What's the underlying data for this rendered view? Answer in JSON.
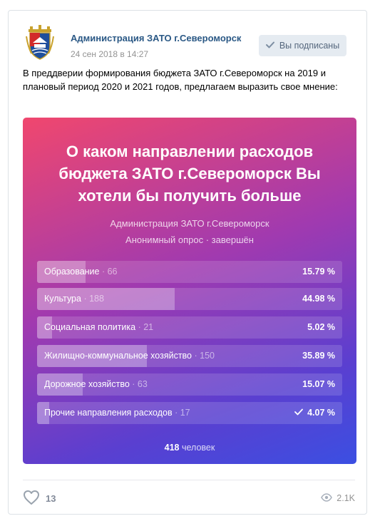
{
  "post": {
    "author": "Администрация ЗАТО г.Североморск",
    "date": "24 сен 2018 в 14:27",
    "subscribe_label": "Вы подписаны",
    "text": "В преддверии формирования бюджета ЗАТО г.Североморск на 2019 и плановый период 2020 и 2021 годов, предлагаем выразить свое мнение:"
  },
  "poll": {
    "title": "О каком направлении расходов бюджета ЗАТО г.Североморск Вы хотели бы получить больше",
    "author": "Администрация ЗАТО г.Североморск",
    "status": "Анонимный опрос · завершён",
    "answers": [
      {
        "label": "Образование",
        "count": "66",
        "percent_label": "15.79 %",
        "percent": 15.79,
        "voted": false
      },
      {
        "label": "Культура",
        "count": "188",
        "percent_label": "44.98 %",
        "percent": 44.98,
        "voted": false
      },
      {
        "label": "Социальная политика",
        "count": "21",
        "percent_label": "5.02 %",
        "percent": 5.02,
        "voted": false
      },
      {
        "label": "Жилищно-коммунальное хозяйство",
        "count": "150",
        "percent_label": "35.89 %",
        "percent": 35.89,
        "voted": false
      },
      {
        "label": "Дорожное хозяйство",
        "count": "63",
        "percent_label": "15.07 %",
        "percent": 15.07,
        "voted": false
      },
      {
        "label": "Прочие направления расходов",
        "count": "17",
        "percent_label": "4.07 %",
        "percent": 4.07,
        "voted": true
      }
    ],
    "total_count": "418",
    "total_unit": "человек"
  },
  "footer": {
    "likes": "13",
    "views": "2.1K"
  },
  "colors": {
    "link": "#2a5885",
    "gradient_start": "#f0476e",
    "gradient_end": "#3b4fe2"
  },
  "icons": {
    "subscribe": "check-icon",
    "like": "heart-icon",
    "views": "eye-icon",
    "voted": "check-icon"
  }
}
